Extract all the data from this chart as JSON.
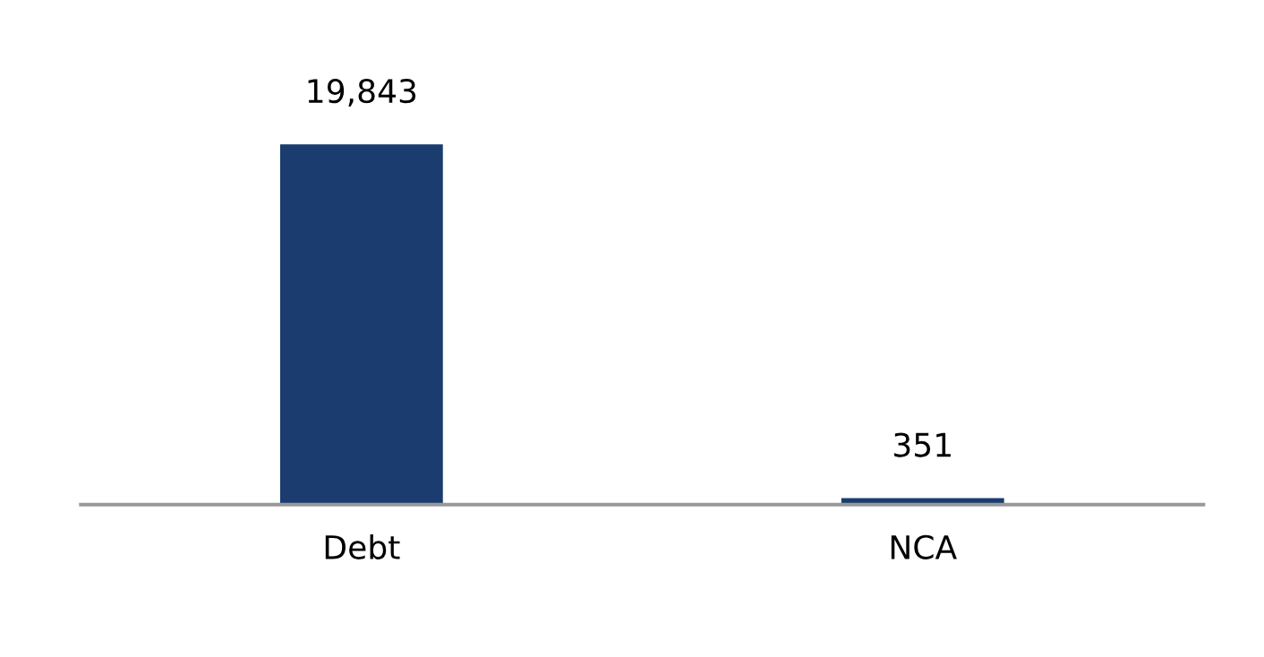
{
  "chart_data": {
    "type": "bar",
    "categories": [
      "Debt",
      "NCA"
    ],
    "values": [
      19843,
      351
    ],
    "value_labels": [
      "19,843",
      "351"
    ],
    "color": "#1a3c6e"
  }
}
